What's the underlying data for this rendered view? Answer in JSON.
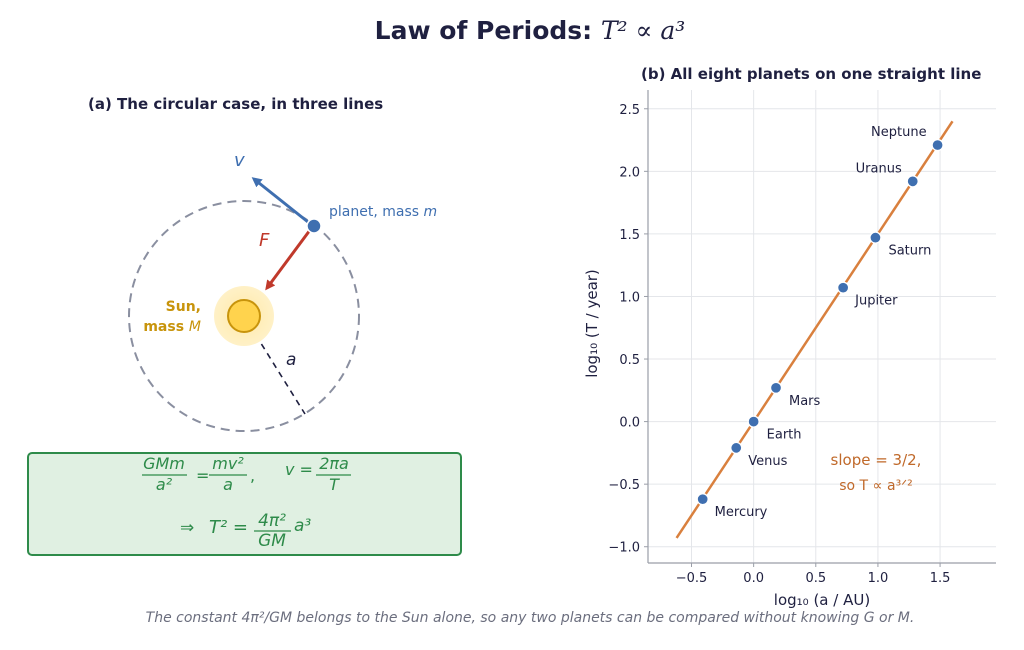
{
  "title": {
    "text": "Law of Periods:",
    "formula": "T² ∝ a³"
  },
  "panel_a": {
    "title": "(a) The circular case, in three lines",
    "labels": {
      "velocity": "v",
      "force": "F",
      "planet": "planet, mass",
      "planet_mass_symbol": "m",
      "sun_line1": "Sun,",
      "sun_line2": "mass",
      "sun_mass_symbol": "M",
      "radius": "a"
    },
    "equations": {
      "line1_lhs_num": "GMm",
      "line1_lhs_den": "a²",
      "line1_rhs_num": "mv²",
      "line1_rhs_den": "a",
      "line1_comma": ",",
      "line1_v": "v =",
      "line1_v_num": "2πa",
      "line1_v_den": "T",
      "line2_arrow": "⇒",
      "line2_lhs": "T² =",
      "line2_num": "4π²",
      "line2_den": "GM",
      "line2_tail": "a³"
    },
    "colors": {
      "velocity": "#3f6fb0",
      "force": "#c0392b",
      "sun": "#c8940c",
      "sun_fill": "#ffd34d",
      "orbit": "#8a8fa0",
      "eq_box_fill": "#e0f0e2",
      "eq_box_border": "#2e8b4a",
      "eq_text": "#2e8b4a"
    }
  },
  "panel_b": {
    "chart_data": {
      "type": "scatter",
      "title": "(b) All eight planets on one straight line",
      "xlabel": "log₁₀ (a / AU)",
      "ylabel": "log₁₀ (T / year)",
      "xlim": [
        -0.85,
        1.95
      ],
      "ylim": [
        -1.13,
        2.65
      ],
      "xticks": [
        -0.5,
        0.0,
        0.5,
        1.0,
        1.5
      ],
      "xtick_labels": [
        "−0.5",
        "0.0",
        "0.5",
        "1.0",
        "1.5"
      ],
      "yticks": [
        -1.0,
        -0.5,
        0.0,
        0.5,
        1.0,
        1.5,
        2.0,
        2.5
      ],
      "ytick_labels": [
        "−1.0",
        "−0.5",
        "0.0",
        "0.5",
        "1.0",
        "1.5",
        "2.0",
        "2.5"
      ],
      "grid": true,
      "points": [
        {
          "name": "Mercury",
          "x": -0.41,
          "y": -0.62
        },
        {
          "name": "Venus",
          "x": -0.14,
          "y": -0.21
        },
        {
          "name": "Earth",
          "x": 0.0,
          "y": 0.0
        },
        {
          "name": "Mars",
          "x": 0.18,
          "y": 0.27
        },
        {
          "name": "Jupiter",
          "x": 0.72,
          "y": 1.07
        },
        {
          "name": "Saturn",
          "x": 0.98,
          "y": 1.47
        },
        {
          "name": "Uranus",
          "x": 1.28,
          "y": 1.92
        },
        {
          "name": "Neptune",
          "x": 1.48,
          "y": 2.21
        }
      ],
      "fit_line": {
        "x": [
          -0.62,
          1.6
        ],
        "y": [
          -0.93,
          2.4
        ]
      },
      "annotation_line1": "slope = 3/2,",
      "annotation_line2": "so T ∝ a³ᐟ²",
      "colors": {
        "points": "#3f6fb0",
        "line": "#d9803e",
        "annotation": "#c0692a",
        "grid": "#e4e6ea",
        "axis": "#9a9ea8"
      }
    }
  },
  "caption": "The constant 4π²/GM belongs to the Sun alone, so any two planets can be compared without knowing G or M."
}
